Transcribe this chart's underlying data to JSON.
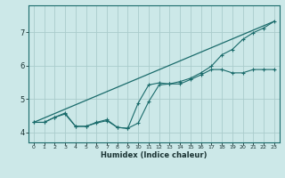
{
  "xlabel": "Humidex (Indice chaleur)",
  "bg_color": "#cce8e8",
  "grid_color": "#aacccc",
  "line_color": "#1a6b6b",
  "xlim": [
    -0.5,
    23.5
  ],
  "ylim": [
    3.7,
    7.8
  ],
  "xticks": [
    0,
    1,
    2,
    3,
    4,
    5,
    6,
    7,
    8,
    9,
    10,
    11,
    12,
    13,
    14,
    15,
    16,
    17,
    18,
    19,
    20,
    21,
    22,
    23
  ],
  "yticks": [
    4,
    5,
    6,
    7
  ],
  "line1_x": [
    0,
    1,
    2,
    3,
    4,
    5,
    6,
    7,
    8,
    9,
    10,
    11,
    12,
    13,
    14,
    15,
    16,
    17,
    18,
    19,
    20,
    21,
    22,
    23
  ],
  "line1_y": [
    4.3,
    4.3,
    4.45,
    4.55,
    4.18,
    4.18,
    4.28,
    4.35,
    4.15,
    4.12,
    4.28,
    4.92,
    5.42,
    5.45,
    5.45,
    5.58,
    5.72,
    5.88,
    5.88,
    5.78,
    5.78,
    5.88,
    5.88,
    5.88
  ],
  "line2_x": [
    0,
    1,
    2,
    3,
    4,
    5,
    6,
    7,
    8,
    9,
    10,
    11,
    12,
    13,
    14,
    15,
    16,
    17,
    18,
    19,
    20,
    21,
    22,
    23
  ],
  "line2_y": [
    4.3,
    4.3,
    4.45,
    4.58,
    4.18,
    4.18,
    4.3,
    4.38,
    4.15,
    4.12,
    4.88,
    5.42,
    5.48,
    5.45,
    5.52,
    5.62,
    5.78,
    5.98,
    6.32,
    6.48,
    6.78,
    6.98,
    7.12,
    7.32
  ],
  "line3_x": [
    0,
    23
  ],
  "line3_y": [
    4.3,
    7.32
  ]
}
